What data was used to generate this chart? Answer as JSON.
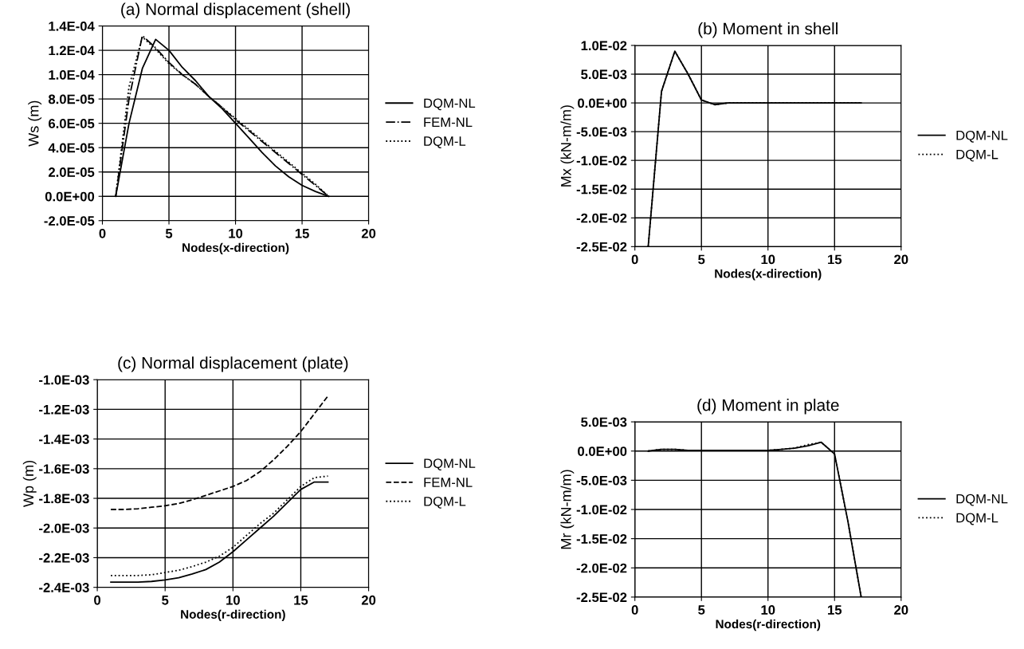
{
  "chart_data": [
    {
      "type": "line",
      "title": "(a) Normal displacement (shell)",
      "xlabel": "Nodes(x-direction)",
      "ylabel": "Ws (m)",
      "x": [
        1,
        2,
        3,
        4,
        5,
        6,
        7,
        8,
        9,
        10,
        11,
        12,
        13,
        14,
        15,
        16,
        17
      ],
      "xlim": [
        0,
        20
      ],
      "xticks": [
        0,
        5,
        10,
        15,
        20
      ],
      "ylim": [
        -2e-05,
        0.00014
      ],
      "yticks": [
        {
          "value": -2e-05,
          "label": "-2.0E-05"
        },
        {
          "value": 0,
          "label": "0.0E+00"
        },
        {
          "value": 2e-05,
          "label": "2.0E-05"
        },
        {
          "value": 4e-05,
          "label": "4.0E-05"
        },
        {
          "value": 6e-05,
          "label": "6.0E-05"
        },
        {
          "value": 8e-05,
          "label": "8.0E-05"
        },
        {
          "value": 0.0001,
          "label": "1.0E-04"
        },
        {
          "value": 0.00012,
          "label": "1.2E-04"
        },
        {
          "value": 0.00014,
          "label": "1.4E-04"
        }
      ],
      "grid": true,
      "legend": "right",
      "series": [
        {
          "name": "DQM-NL",
          "color": "#000000",
          "line_style": "solid",
          "values": [
            0,
            6e-05,
            0.000105,
            0.000129,
            0.00012,
            0.000106,
            9.5e-05,
            8.2e-05,
            7.2e-05,
            6e-05,
            4.8e-05,
            3.6e-05,
            2.5e-05,
            1.6e-05,
            9e-06,
            4e-06,
            0
          ]
        },
        {
          "name": "FEM-NL",
          "color": "#000000",
          "line_style": "dashdot",
          "values": [
            0,
            8e-05,
            0.000132,
            0.000122,
            0.00011,
            0.0001,
            9.2e-05,
            8.2e-05,
            7.3e-05,
            6.3e-05,
            5.4e-05,
            4.5e-05,
            3.6e-05,
            2.7e-05,
            1.8e-05,
            9e-06,
            0
          ]
        },
        {
          "name": "DQM-L",
          "color": "#000000",
          "line_style": "dotted",
          "values": [
            0,
            9e-05,
            0.000131,
            0.000121,
            0.000109,
            0.0001,
            9.2e-05,
            8.2e-05,
            7.3e-05,
            6.4e-05,
            5.5e-05,
            4.6e-05,
            3.7e-05,
            2.8e-05,
            1.9e-05,
            1e-05,
            0
          ]
        }
      ]
    },
    {
      "type": "line",
      "title": "(b) Moment in shell",
      "xlabel": "Nodes(x-direction)",
      "ylabel": "Mx (kN-m/m)",
      "x": [
        1,
        2,
        3,
        4,
        5,
        6,
        7,
        8,
        9,
        10,
        11,
        12,
        13,
        14,
        15,
        16,
        17
      ],
      "xlim": [
        0,
        20
      ],
      "xticks": [
        0,
        5,
        10,
        15,
        20
      ],
      "ylim": [
        -0.025,
        0.01
      ],
      "yticks": [
        {
          "value": -0.025,
          "label": "-2.5E-02"
        },
        {
          "value": -0.02,
          "label": "-2.0E-02"
        },
        {
          "value": -0.015,
          "label": "-1.5E-02"
        },
        {
          "value": -0.01,
          "label": "-1.0E-02"
        },
        {
          "value": -0.005,
          "label": "-5.0E-03"
        },
        {
          "value": 0,
          "label": "0.0E+00"
        },
        {
          "value": 0.005,
          "label": "5.0E-03"
        },
        {
          "value": 0.01,
          "label": "1.0E-02"
        }
      ],
      "grid": true,
      "legend": "right",
      "series": [
        {
          "name": "DQM-NL",
          "color": "#000000",
          "line_style": "solid",
          "values": [
            -0.025,
            0.002,
            0.009,
            0.005,
            0.0005,
            -0.0003,
            0,
            0,
            0,
            0,
            0,
            0,
            0,
            0,
            0,
            0,
            0
          ]
        },
        {
          "name": "DQM-L",
          "color": "#000000",
          "line_style": "dotted",
          "values": [
            -0.025,
            0.002,
            0.009,
            0.005,
            0.0005,
            -0.0003,
            0,
            0,
            0,
            0,
            0,
            0,
            0,
            0,
            0,
            0,
            0
          ]
        }
      ]
    },
    {
      "type": "line",
      "title": "(c) Normal displacement (plate)",
      "xlabel": "Nodes(r-direction)",
      "ylabel": "Wp (m)",
      "x": [
        1,
        2,
        3,
        4,
        5,
        6,
        7,
        8,
        9,
        10,
        11,
        12,
        13,
        14,
        15,
        16,
        17
      ],
      "xlim": [
        0,
        20
      ],
      "xticks": [
        0,
        5,
        10,
        15,
        20
      ],
      "ylim": [
        -0.0024,
        -0.001
      ],
      "yticks": [
        {
          "value": -0.0024,
          "label": "-2.4E-03"
        },
        {
          "value": -0.0022,
          "label": "-2.2E-03"
        },
        {
          "value": -0.002,
          "label": "-2.0E-03"
        },
        {
          "value": -0.0018,
          "label": "-1.8E-03"
        },
        {
          "value": -0.0016,
          "label": "-1.6E-03"
        },
        {
          "value": -0.0014,
          "label": "-1.4E-03"
        },
        {
          "value": -0.0012,
          "label": "-1.2E-03"
        },
        {
          "value": -0.001,
          "label": "-1.0E-03"
        }
      ],
      "grid": true,
      "legend": "right",
      "series": [
        {
          "name": "DQM-NL",
          "color": "#000000",
          "line_style": "solid",
          "values": [
            -0.002365,
            -0.002365,
            -0.002365,
            -0.00236,
            -0.00235,
            -0.002335,
            -0.00231,
            -0.00228,
            -0.00223,
            -0.00216,
            -0.00208,
            -0.002,
            -0.00192,
            -0.00183,
            -0.00174,
            -0.00169,
            -0.00169
          ]
        },
        {
          "name": "FEM-NL",
          "color": "#000000",
          "line_style": "dashed",
          "values": [
            -0.001875,
            -0.001875,
            -0.00187,
            -0.00186,
            -0.00185,
            -0.001835,
            -0.00181,
            -0.00178,
            -0.00175,
            -0.00172,
            -0.00168,
            -0.00162,
            -0.00154,
            -0.00145,
            -0.00135,
            -0.00123,
            -0.00111
          ]
        },
        {
          "name": "DQM-L",
          "color": "#000000",
          "line_style": "dotted",
          "values": [
            -0.00232,
            -0.00232,
            -0.00232,
            -0.002315,
            -0.0023,
            -0.002285,
            -0.00226,
            -0.00223,
            -0.00219,
            -0.00213,
            -0.00205,
            -0.00197,
            -0.0019,
            -0.00181,
            -0.00172,
            -0.00166,
            -0.00165
          ]
        }
      ]
    },
    {
      "type": "line",
      "title": "(d) Moment in plate",
      "xlabel": "Nodes(r-direction)",
      "ylabel": "Mr (kN-m/m)",
      "x": [
        1,
        2,
        3,
        4,
        5,
        6,
        7,
        8,
        9,
        10,
        11,
        12,
        13,
        14,
        15,
        16,
        17
      ],
      "xlim": [
        0,
        20
      ],
      "xticks": [
        0,
        5,
        10,
        15,
        20
      ],
      "ylim": [
        -0.025,
        0.005
      ],
      "yticks": [
        {
          "value": -0.025,
          "label": "-2.5E-02"
        },
        {
          "value": -0.02,
          "label": "-2.0E-02"
        },
        {
          "value": -0.015,
          "label": "-1.5E-02"
        },
        {
          "value": -0.01,
          "label": "-1.0E-02"
        },
        {
          "value": -0.005,
          "label": "-5.0E-03"
        },
        {
          "value": 0,
          "label": "0.0E+00"
        },
        {
          "value": 0.005,
          "label": "5.0E-03"
        }
      ],
      "grid": true,
      "legend": "right",
      "series": [
        {
          "name": "DQM-NL",
          "color": "#000000",
          "line_style": "solid",
          "values": [
            0,
            0.0003,
            0.0003,
            0.0001,
            0.0001,
            0.0001,
            0.0001,
            0.0001,
            0.0001,
            0.0001,
            0.0003,
            0.0005,
            0.0009,
            0.0015,
            -0.0005,
            -0.012,
            -0.025
          ]
        },
        {
          "name": "DQM-L",
          "color": "#000000",
          "line_style": "dotted",
          "values": [
            0,
            0.0003,
            0.0003,
            0.0001,
            0.0001,
            0.0001,
            0.0001,
            0.0001,
            0.0001,
            0.0001,
            0.0003,
            0.0005,
            0.0011,
            0.0015,
            -0.0005,
            -0.012,
            -0.025
          ]
        }
      ]
    }
  ]
}
